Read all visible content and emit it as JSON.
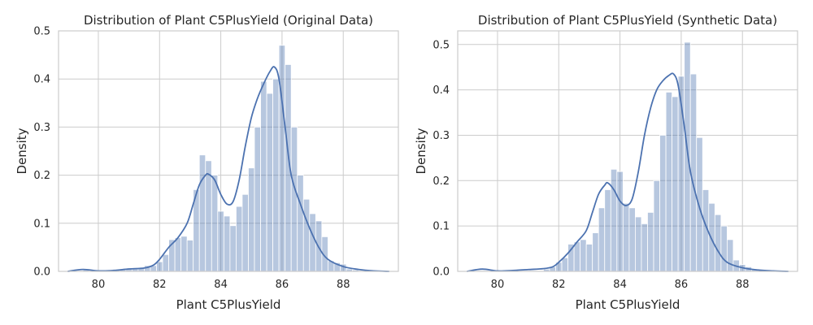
{
  "chart_data": [
    {
      "type": "histogram",
      "title": "Distribution of Plant C5PlusYield (Original Data)",
      "xlabel": "Plant C5PlusYield",
      "ylabel": "Density",
      "xlim": [
        78.7,
        89.8
      ],
      "ylim": [
        0,
        0.5
      ],
      "xticks": [
        "80",
        "82",
        "84",
        "86",
        "88"
      ],
      "yticks": [
        "0.0",
        "0.1",
        "0.2",
        "0.3",
        "0.4",
        "0.5"
      ],
      "grid": true,
      "color": "#4c72b0",
      "bin_start": 79.5,
      "bin_width": 0.2,
      "bin_values": [
        0.003,
        0,
        0,
        0,
        0,
        0.003,
        0.004,
        0.006,
        0.006,
        0.008,
        0.012,
        0.012,
        0.02,
        0.035,
        0.066,
        0.07,
        0.073,
        0.065,
        0.17,
        0.242,
        0.23,
        0.2,
        0.125,
        0.115,
        0.095,
        0.135,
        0.16,
        0.215,
        0.3,
        0.395,
        0.37,
        0.4,
        0.47,
        0.43,
        0.3,
        0.2,
        0.15,
        0.12,
        0.105,
        0.072,
        0.022,
        0.018,
        0.015,
        0.005,
        0.003
      ],
      "kde_x": [
        79.0,
        79.5,
        80.0,
        80.5,
        81.0,
        81.5,
        81.8,
        82.0,
        82.3,
        82.6,
        82.9,
        83.1,
        83.3,
        83.5,
        83.6,
        83.8,
        84.0,
        84.2,
        84.4,
        84.6,
        84.8,
        85.0,
        85.2,
        85.4,
        85.6,
        85.75,
        85.9,
        86.1,
        86.3,
        86.6,
        86.9,
        87.2,
        87.5,
        88.0,
        88.5,
        89.0,
        89.5
      ],
      "kde_y": [
        0.0,
        0.004,
        0.001,
        0.002,
        0.005,
        0.007,
        0.013,
        0.025,
        0.05,
        0.07,
        0.1,
        0.14,
        0.18,
        0.2,
        0.202,
        0.19,
        0.16,
        0.14,
        0.145,
        0.19,
        0.26,
        0.32,
        0.36,
        0.39,
        0.415,
        0.425,
        0.4,
        0.3,
        0.2,
        0.14,
        0.09,
        0.05,
        0.025,
        0.01,
        0.004,
        0.001,
        0.0
      ]
    },
    {
      "type": "histogram",
      "title": "Distribution of Plant C5PlusYield (Synthetic Data)",
      "xlabel": "Plant C5PlusYield",
      "ylabel": "Density",
      "xlim": [
        78.7,
        89.8
      ],
      "ylim": [
        0,
        0.53
      ],
      "xticks": [
        "80",
        "82",
        "84",
        "86",
        "88"
      ],
      "yticks": [
        "0.0",
        "0.1",
        "0.2",
        "0.3",
        "0.4",
        "0.5"
      ],
      "grid": true,
      "color": "#4c72b0",
      "bin_start": 81.5,
      "bin_width": 0.2,
      "bin_values": [
        0.005,
        0.01,
        0.02,
        0.03,
        0.06,
        0.065,
        0.07,
        0.06,
        0.085,
        0.14,
        0.18,
        0.225,
        0.22,
        0.15,
        0.14,
        0.12,
        0.105,
        0.13,
        0.2,
        0.3,
        0.395,
        0.385,
        0.43,
        0.505,
        0.435,
        0.295,
        0.18,
        0.15,
        0.125,
        0.1,
        0.07,
        0.025,
        0.015,
        0.01,
        0.005
      ],
      "kde_x": [
        79.0,
        79.5,
        80.0,
        80.5,
        81.0,
        81.5,
        81.8,
        82.0,
        82.3,
        82.6,
        82.9,
        83.1,
        83.3,
        83.5,
        83.6,
        83.8,
        84.0,
        84.2,
        84.4,
        84.6,
        84.8,
        85.0,
        85.2,
        85.4,
        85.6,
        85.75,
        85.9,
        86.1,
        86.3,
        86.6,
        86.9,
        87.2,
        87.5,
        88.0,
        88.5,
        89.0,
        89.5
      ],
      "kde_y": [
        0.0,
        0.005,
        0.001,
        0.002,
        0.004,
        0.006,
        0.01,
        0.02,
        0.04,
        0.065,
        0.09,
        0.13,
        0.17,
        0.19,
        0.195,
        0.18,
        0.155,
        0.145,
        0.16,
        0.22,
        0.3,
        0.36,
        0.4,
        0.42,
        0.432,
        0.435,
        0.41,
        0.32,
        0.22,
        0.14,
        0.085,
        0.045,
        0.02,
        0.008,
        0.003,
        0.001,
        0.0
      ]
    }
  ]
}
